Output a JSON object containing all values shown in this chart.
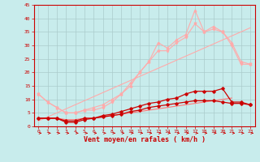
{
  "x": [
    0,
    1,
    2,
    3,
    4,
    5,
    6,
    7,
    8,
    9,
    10,
    11,
    12,
    13,
    14,
    15,
    16,
    17,
    18,
    19,
    20,
    21,
    22,
    23
  ],
  "line_pink_top": [
    12,
    9,
    7,
    5,
    5,
    6,
    7,
    8,
    10,
    12,
    15,
    20,
    24,
    31,
    29,
    32,
    34,
    43,
    35,
    37,
    35,
    31,
    24,
    23
  ],
  "line_pink_bot": [
    12,
    9,
    7,
    5,
    5,
    6,
    6,
    7,
    9,
    12,
    16,
    20,
    24,
    28,
    28,
    31,
    33,
    38,
    35,
    36,
    35,
    30,
    23,
    23
  ],
  "line_pink_linear": [
    2.0,
    3.5,
    5.0,
    6.5,
    8.0,
    9.5,
    11.0,
    12.5,
    14.0,
    15.5,
    17.0,
    18.5,
    20.0,
    21.5,
    23.0,
    24.5,
    26.0,
    27.5,
    29.0,
    30.5,
    32.0,
    33.5,
    35.0,
    36.5
  ],
  "line_dark_upper": [
    3,
    3,
    3,
    1.5,
    1.5,
    2.5,
    3,
    4,
    4.5,
    5.5,
    6.5,
    7.5,
    8.5,
    9,
    10,
    10.5,
    12,
    13,
    13,
    13,
    14,
    9,
    9,
    8
  ],
  "line_dark_lower": [
    3,
    3,
    3,
    2,
    2,
    3,
    3,
    3.5,
    4,
    4.5,
    5.5,
    6,
    7,
    7.5,
    8,
    8.5,
    9,
    9.5,
    9.5,
    9.5,
    9,
    8.5,
    8.5,
    8
  ],
  "line_dark_flat": [
    3,
    3,
    3,
    2.5,
    2.5,
    3,
    3,
    3.5,
    4,
    4.5,
    5,
    5.5,
    6,
    6.5,
    7,
    7.5,
    8,
    8.5,
    9,
    9.5,
    10,
    10.5,
    null,
    null
  ],
  "color_dark_red": "#cc0000",
  "color_light_pink": "#ffaaaa",
  "color_medium_pink": "#ff7777",
  "bg_color": "#c8ecec",
  "grid_color": "#aacccc",
  "xlabel": "Vent moyen/en rafales ( km/h )",
  "xlim_min": -0.5,
  "xlim_max": 23.5,
  "ylim_min": 0,
  "ylim_max": 45,
  "yticks": [
    0,
    5,
    10,
    15,
    20,
    25,
    30,
    35,
    40,
    45
  ],
  "xticks": [
    0,
    1,
    2,
    3,
    4,
    5,
    6,
    7,
    8,
    9,
    10,
    11,
    12,
    13,
    14,
    15,
    16,
    17,
    18,
    19,
    20,
    21,
    22,
    23
  ]
}
